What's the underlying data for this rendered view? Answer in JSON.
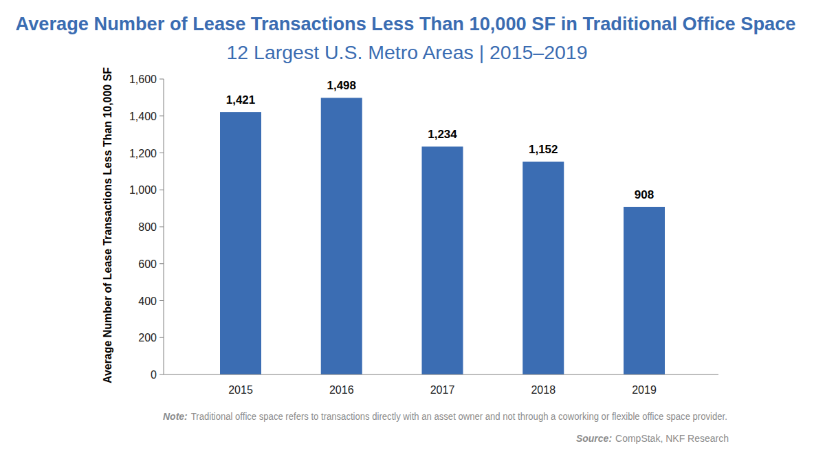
{
  "chart_data": {
    "type": "bar",
    "title": "Average Number of Lease Transactions Less Than 10,000 SF in Traditional Office Space",
    "subtitle": "12 Largest U.S. Metro Areas | 2015–2019",
    "ylabel": "Average Number of Lease Transactions Less Than 10,000 SF",
    "categories": [
      "2015",
      "2016",
      "2017",
      "2018",
      "2019"
    ],
    "values": [
      1421,
      1498,
      1234,
      1152,
      908
    ],
    "value_labels": [
      "1,421",
      "1,498",
      "1,234",
      "1,152",
      "908"
    ],
    "color": "#3b6db3",
    "ylim": [
      0,
      1600
    ],
    "yticks": [
      0,
      200,
      400,
      600,
      800,
      {
        "value": 1000,
        "label": "1,000"
      },
      {
        "value": 1200,
        "label": "1,200"
      },
      {
        "value": 1400,
        "label": "1,400"
      },
      {
        "value": 1600,
        "label": "1,600"
      }
    ],
    "grid": false,
    "data_labels": true,
    "note_label": "Note:",
    "note": "Traditional office space refers to transactions directly with an asset owner and not through a coworking or flexible office space provider.",
    "source_label": "Source:",
    "source": "CompStak, NKF Research"
  }
}
